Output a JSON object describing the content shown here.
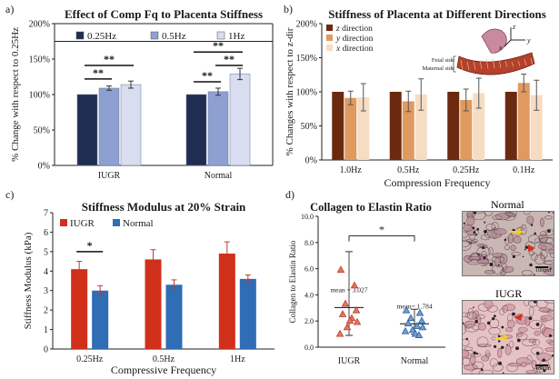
{
  "panel_labels": {
    "a": "a)",
    "b": "b)",
    "c": "c)",
    "d": "d)"
  },
  "chart_data": [
    {
      "id": "a",
      "type": "bar",
      "title": "Effect of Comp Fq to Placenta Stiffness",
      "ylabel": "% Change with respect to 0.25Hz",
      "xlabel": "",
      "ylim": [
        0,
        200
      ],
      "yticks": [
        "0%",
        "50%",
        "100%",
        "150%",
        "200%"
      ],
      "categories": [
        "IUGR",
        "Normal"
      ],
      "series": [
        {
          "name": "0.25Hz",
          "color": "#1f2d52",
          "values": [
            100,
            100
          ],
          "errors": [
            0,
            0
          ]
        },
        {
          "name": "0.5Hz",
          "color": "#8ea0d2",
          "values": [
            109,
            104
          ],
          "errors": [
            3,
            5
          ]
        },
        {
          "name": "1Hz",
          "color": "#d8deef",
          "values": [
            114,
            129
          ],
          "errors": [
            5,
            8
          ]
        }
      ],
      "significance": [
        {
          "label": "**",
          "group": 0,
          "from": 0,
          "to": 1,
          "y": 122
        },
        {
          "label": "**",
          "group": 0,
          "from": 0,
          "to": 2,
          "y": 141
        },
        {
          "label": "**",
          "group": 1,
          "from": 0,
          "to": 1,
          "y": 118
        },
        {
          "label": "**",
          "group": 1,
          "from": 1,
          "to": 2,
          "y": 141
        },
        {
          "label": "**",
          "group": 1,
          "from": 0,
          "to": 2,
          "y": 160
        }
      ],
      "legend_position": "top",
      "grid": false
    },
    {
      "id": "b",
      "type": "bar",
      "title": "Stiffness of Placenta at Different Directions",
      "ylabel": "% Changes with respect to z-dir",
      "xlabel": "Compression Frequency",
      "ylim": [
        0,
        200
      ],
      "yticks": [
        "0%",
        "50%",
        "100%",
        "150%",
        "200%"
      ],
      "categories": [
        "1.0Hz",
        "0.5Hz",
        "0.25Hz",
        "0.1Hz"
      ],
      "series": [
        {
          "name": "z direction",
          "color": "#6b2a10",
          "values": [
            100,
            100,
            100,
            100
          ],
          "errors": [
            0,
            0,
            0,
            0
          ]
        },
        {
          "name": "y direction",
          "color": "#e0995e",
          "values": [
            91,
            86,
            88,
            113
          ],
          "errors": [
            10,
            15,
            16,
            13
          ]
        },
        {
          "name": "x direction",
          "color": "#f6dcc3",
          "values": [
            92,
            96,
            98,
            95
          ],
          "errors": [
            20,
            23,
            22,
            22
          ]
        }
      ],
      "legend_position": "top-left",
      "grid": false,
      "inset_labels": [
        "Fetal side",
        "Maternal side"
      ],
      "axes_labels": [
        "z",
        "y",
        "x"
      ]
    },
    {
      "id": "c",
      "type": "bar",
      "title": "Stiffness Modulus at 20% Strain",
      "ylabel": "Stiffness Modulus (kPa)",
      "xlabel": "Compressive Frequency",
      "ylim": [
        0,
        7
      ],
      "yticks": [
        "0",
        "1",
        "2",
        "3",
        "4",
        "5",
        "6",
        "7"
      ],
      "categories": [
        "0.25Hz",
        "0.5Hz",
        "1Hz"
      ],
      "series": [
        {
          "name": "IUGR",
          "color": "#d0301a",
          "values": [
            4.1,
            4.6,
            4.9
          ],
          "errors": [
            0.4,
            0.5,
            0.6
          ]
        },
        {
          "name": "Normal",
          "color": "#2f6db5",
          "values": [
            3.0,
            3.3,
            3.6
          ],
          "errors": [
            0.25,
            0.25,
            0.2
          ]
        }
      ],
      "significance": [
        {
          "label": "*",
          "group": 0,
          "from": 0,
          "to": 1,
          "y": 5.0
        }
      ],
      "legend_position": "top-left",
      "grid": false
    },
    {
      "id": "d",
      "type": "scatter",
      "title": "Collagen to Elastin Ratio",
      "ylabel": "Collagen to Elastin Ratio",
      "xlabel": "",
      "ylim": [
        0,
        10
      ],
      "yticks": [
        "0.0",
        "2.0",
        "4.0",
        "6.0",
        "8.0",
        "10.0"
      ],
      "categories": [
        "IUGR",
        "Normal"
      ],
      "series": [
        {
          "name": "IUGR",
          "color": "#c0392b",
          "marker": "triangle-up",
          "mean": 3.027,
          "mean_label": "mean = 3.027",
          "sd_low": 0.9,
          "sd_high": 7.3,
          "values": [
            5.9,
            4.7,
            3.3,
            2.8,
            2.5,
            2.2,
            1.9,
            1.5,
            1.0,
            2.0
          ]
        },
        {
          "name": "Normal",
          "color": "#2c5d9a",
          "marker": "triangle-up",
          "mean": 1.784,
          "mean_label": "mean= 1.784",
          "sd_low": 1.0,
          "sd_high": 2.9,
          "values": [
            2.8,
            2.6,
            2.2,
            2.0,
            1.8,
            1.6,
            1.5,
            1.3,
            1.2,
            1.0,
            0.9
          ]
        }
      ],
      "significance": [
        {
          "label": "*",
          "from": 0,
          "to": 1,
          "y": 8.5
        }
      ],
      "grid": false
    }
  ],
  "images": {
    "normal": {
      "label": "Normal",
      "scale": "100μm"
    },
    "iugr": {
      "label": "IUGR",
      "scale": "100μm"
    }
  }
}
